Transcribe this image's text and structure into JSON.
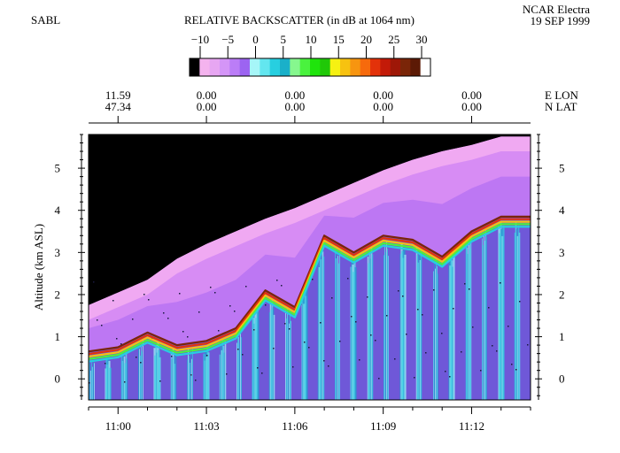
{
  "header": {
    "instrument": "SABL",
    "platform": "NCAR Electra",
    "date": "19 SEP 1999"
  },
  "colorbar": {
    "title": "RELATIVE BACKSCATTER (in dB at 1064 nm)",
    "ticks": [
      "−10",
      "−5",
      "0",
      "5",
      "10",
      "15",
      "20",
      "25",
      "30"
    ],
    "colors": [
      "#000000",
      "#f4b3ee",
      "#e7a6f2",
      "#d495f7",
      "#bb7df7",
      "#9c64f1",
      "#a6f6f8",
      "#63e6ef",
      "#27cfe0",
      "#1ab0c9",
      "#86f78e",
      "#4af23e",
      "#1fe40c",
      "#20c808",
      "#f6f112",
      "#f7c210",
      "#f79510",
      "#f66a0c",
      "#e3320a",
      "#c31a08",
      "#9e1707",
      "#7a2508",
      "#5c1a05",
      "#ffffff"
    ]
  },
  "chart_data": {
    "type": "heatmap",
    "title": "RELATIVE BACKSCATTER (in dB at 1064 nm)",
    "ylabel": "Altitude (km ASL)",
    "ylim": [
      -0.5,
      5.8
    ],
    "xlim": [
      "10:59",
      "11:14"
    ],
    "y_ticks": [
      "0",
      "1",
      "2",
      "3",
      "4",
      "5"
    ],
    "x_ticks": [
      "11:00",
      "11:03",
      "11:06",
      "11:09",
      "11:12"
    ],
    "top_axis": {
      "right_labels": [
        "E  LON",
        "N  LAT"
      ],
      "columns": [
        {
          "lon": "11.59",
          "lat": "47.34"
        },
        {
          "lon": "0.00",
          "lat": "0.00"
        },
        {
          "lon": "0.00",
          "lat": "0.00"
        },
        {
          "lon": "0.00",
          "lat": "0.00"
        },
        {
          "lon": "0.00",
          "lat": "0.00"
        }
      ]
    },
    "aircraft_altitude_km": [
      {
        "time": "10:59",
        "alt": 1.75
      },
      {
        "time": "11:00",
        "alt": 2.05
      },
      {
        "time": "11:01",
        "alt": 2.35
      },
      {
        "time": "11:02",
        "alt": 2.85
      },
      {
        "time": "11:03",
        "alt": 3.2
      },
      {
        "time": "11:04",
        "alt": 3.5
      },
      {
        "time": "11:05",
        "alt": 3.8
      },
      {
        "time": "11:06",
        "alt": 4.05
      },
      {
        "time": "11:07",
        "alt": 4.35
      },
      {
        "time": "11:08",
        "alt": 4.65
      },
      {
        "time": "11:09",
        "alt": 4.95
      },
      {
        "time": "11:10",
        "alt": 5.2
      },
      {
        "time": "11:11",
        "alt": 5.4
      },
      {
        "time": "11:12",
        "alt": 5.55
      },
      {
        "time": "11:13",
        "alt": 5.75
      },
      {
        "time": "11:14",
        "alt": 5.75
      }
    ],
    "boundary_layer_top_km": [
      {
        "time": "10:59",
        "alt": 0.65
      },
      {
        "time": "11:00",
        "alt": 0.75
      },
      {
        "time": "11:01",
        "alt": 1.1
      },
      {
        "time": "11:02",
        "alt": 0.8
      },
      {
        "time": "11:03",
        "alt": 0.9
      },
      {
        "time": "11:04",
        "alt": 1.2
      },
      {
        "time": "11:05",
        "alt": 2.1
      },
      {
        "time": "11:06",
        "alt": 1.7
      },
      {
        "time": "11:07",
        "alt": 3.4
      },
      {
        "time": "11:08",
        "alt": 3.0
      },
      {
        "time": "11:09",
        "alt": 3.4
      },
      {
        "time": "11:10",
        "alt": 3.3
      },
      {
        "time": "11:11",
        "alt": 2.9
      },
      {
        "time": "11:12",
        "alt": 3.5
      },
      {
        "time": "11:13",
        "alt": 3.85
      },
      {
        "time": "11:14",
        "alt": 3.85
      }
    ]
  }
}
